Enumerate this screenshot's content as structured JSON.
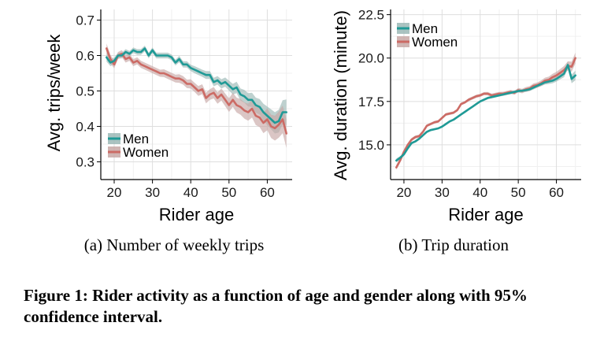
{
  "caption": "Figure 1: Rider activity as a function of age and gender along with 95% confidence interval.",
  "chart_data": [
    {
      "type": "line",
      "subcaption": "(a) Number of weekly trips",
      "xlabel": "Rider age",
      "ylabel": "Avg. trips/week",
      "xlim": [
        16.5,
        66.5
      ],
      "ylim": [
        0.25,
        0.73
      ],
      "xticks": [
        20,
        30,
        40,
        50,
        60
      ],
      "yticks": [
        0.3,
        0.4,
        0.5,
        0.6,
        0.7
      ],
      "ytick_labels": [
        "0.3",
        "0.4",
        "0.5",
        "0.6",
        "0.7"
      ],
      "grid": true,
      "legend_position": "bottom-left",
      "x": [
        18,
        19,
        20,
        21,
        22,
        23,
        24,
        25,
        26,
        27,
        28,
        29,
        30,
        31,
        32,
        33,
        34,
        35,
        36,
        37,
        38,
        39,
        40,
        41,
        42,
        43,
        44,
        45,
        46,
        47,
        48,
        49,
        50,
        51,
        52,
        53,
        54,
        55,
        56,
        57,
        58,
        59,
        60,
        61,
        62,
        63,
        64,
        65
      ],
      "series": [
        {
          "name": "Men",
          "color": "#1f9a96",
          "band_color": "#9bb8b6",
          "values": [
            0.595,
            0.58,
            0.585,
            0.6,
            0.6,
            0.61,
            0.605,
            0.615,
            0.61,
            0.61,
            0.62,
            0.6,
            0.615,
            0.6,
            0.6,
            0.6,
            0.6,
            0.595,
            0.58,
            0.59,
            0.575,
            0.575,
            0.565,
            0.56,
            0.555,
            0.55,
            0.545,
            0.545,
            0.525,
            0.53,
            0.52,
            0.525,
            0.515,
            0.505,
            0.51,
            0.49,
            0.485,
            0.475,
            0.475,
            0.46,
            0.455,
            0.44,
            0.43,
            0.42,
            0.41,
            0.415,
            0.44,
            0.44
          ],
          "ci_halfwidth": [
            0.012,
            0.01,
            0.009,
            0.008,
            0.008,
            0.008,
            0.008,
            0.008,
            0.008,
            0.008,
            0.008,
            0.008,
            0.008,
            0.008,
            0.008,
            0.008,
            0.008,
            0.008,
            0.008,
            0.009,
            0.009,
            0.009,
            0.009,
            0.01,
            0.01,
            0.01,
            0.011,
            0.011,
            0.012,
            0.012,
            0.013,
            0.013,
            0.014,
            0.015,
            0.016,
            0.017,
            0.018,
            0.019,
            0.02,
            0.021,
            0.022,
            0.024,
            0.026,
            0.028,
            0.03,
            0.032,
            0.034,
            0.036
          ]
        },
        {
          "name": "Women",
          "color": "#cc6b65",
          "band_color": "#c8a8a6",
          "values": [
            0.62,
            0.59,
            0.575,
            0.6,
            0.605,
            0.59,
            0.595,
            0.58,
            0.585,
            0.575,
            0.57,
            0.565,
            0.56,
            0.555,
            0.55,
            0.55,
            0.545,
            0.54,
            0.535,
            0.535,
            0.53,
            0.52,
            0.52,
            0.51,
            0.5,
            0.505,
            0.48,
            0.49,
            0.495,
            0.48,
            0.49,
            0.475,
            0.46,
            0.475,
            0.46,
            0.455,
            0.445,
            0.44,
            0.45,
            0.43,
            0.425,
            0.41,
            0.42,
            0.4,
            0.395,
            0.405,
            0.42,
            0.38
          ],
          "ci_halfwidth": [
            0.014,
            0.012,
            0.011,
            0.01,
            0.01,
            0.01,
            0.01,
            0.01,
            0.01,
            0.01,
            0.01,
            0.01,
            0.01,
            0.01,
            0.01,
            0.011,
            0.011,
            0.011,
            0.011,
            0.012,
            0.012,
            0.012,
            0.013,
            0.013,
            0.014,
            0.014,
            0.015,
            0.015,
            0.016,
            0.016,
            0.017,
            0.018,
            0.019,
            0.02,
            0.021,
            0.022,
            0.023,
            0.024,
            0.025,
            0.026,
            0.027,
            0.029,
            0.031,
            0.033,
            0.035,
            0.037,
            0.039,
            0.041
          ]
        }
      ]
    },
    {
      "type": "line",
      "subcaption": "(b) Trip duration",
      "xlabel": "Rider age",
      "ylabel": "Avg. duration (minute)",
      "xlim": [
        16.5,
        66.5
      ],
      "ylim": [
        13.0,
        22.8
      ],
      "xticks": [
        20,
        30,
        40,
        50,
        60
      ],
      "yticks": [
        15.0,
        17.5,
        20.0,
        22.5
      ],
      "ytick_labels": [
        "15.0",
        "17.5",
        "20.0",
        "22.5"
      ],
      "grid": true,
      "legend_position": "top-left",
      "x": [
        18,
        19,
        20,
        21,
        22,
        23,
        24,
        25,
        26,
        27,
        28,
        29,
        30,
        31,
        32,
        33,
        34,
        35,
        36,
        37,
        38,
        39,
        40,
        41,
        42,
        43,
        44,
        45,
        46,
        47,
        48,
        49,
        50,
        51,
        52,
        53,
        54,
        55,
        56,
        57,
        58,
        59,
        60,
        61,
        62,
        63,
        64,
        65
      ],
      "series": [
        {
          "name": "Men",
          "color": "#1f9a96",
          "band_color": "#9bb8b6",
          "values": [
            14.1,
            14.25,
            14.45,
            14.8,
            15.1,
            15.2,
            15.35,
            15.55,
            15.75,
            15.85,
            15.9,
            15.95,
            16.05,
            16.2,
            16.35,
            16.45,
            16.6,
            16.75,
            16.9,
            17.05,
            17.2,
            17.35,
            17.5,
            17.6,
            17.7,
            17.75,
            17.8,
            17.85,
            17.9,
            17.95,
            18.0,
            18.05,
            18.1,
            18.12,
            18.15,
            18.2,
            18.3,
            18.4,
            18.5,
            18.6,
            18.65,
            18.7,
            18.8,
            18.95,
            19.1,
            19.6,
            18.8,
            19.0
          ],
          "ci_halfwidth": [
            0.12,
            0.1,
            0.09,
            0.08,
            0.07,
            0.07,
            0.07,
            0.06,
            0.06,
            0.06,
            0.06,
            0.06,
            0.06,
            0.06,
            0.06,
            0.06,
            0.06,
            0.06,
            0.06,
            0.06,
            0.06,
            0.06,
            0.06,
            0.07,
            0.07,
            0.07,
            0.07,
            0.07,
            0.08,
            0.08,
            0.08,
            0.08,
            0.09,
            0.09,
            0.1,
            0.1,
            0.11,
            0.11,
            0.12,
            0.13,
            0.14,
            0.15,
            0.16,
            0.18,
            0.2,
            0.22,
            0.25,
            0.28
          ]
        },
        {
          "name": "Women",
          "color": "#cc6b65",
          "band_color": "#c8a8a6",
          "values": [
            13.7,
            14.1,
            14.6,
            15.0,
            15.3,
            15.45,
            15.5,
            15.75,
            16.1,
            16.2,
            16.3,
            16.35,
            16.55,
            16.75,
            16.8,
            16.85,
            17.0,
            17.35,
            17.45,
            17.6,
            17.7,
            17.8,
            17.85,
            17.95,
            17.95,
            17.85,
            17.9,
            17.95,
            17.95,
            18.0,
            18.05,
            18.0,
            18.15,
            18.1,
            18.2,
            18.25,
            18.4,
            18.45,
            18.55,
            18.7,
            18.75,
            18.9,
            19.0,
            19.15,
            19.3,
            19.55,
            19.5,
            20.0
          ],
          "ci_halfwidth": [
            0.14,
            0.12,
            0.11,
            0.1,
            0.09,
            0.09,
            0.09,
            0.08,
            0.08,
            0.08,
            0.08,
            0.08,
            0.08,
            0.08,
            0.08,
            0.08,
            0.08,
            0.08,
            0.08,
            0.09,
            0.09,
            0.09,
            0.09,
            0.09,
            0.1,
            0.1,
            0.1,
            0.1,
            0.11,
            0.11,
            0.11,
            0.12,
            0.12,
            0.13,
            0.13,
            0.14,
            0.14,
            0.15,
            0.16,
            0.17,
            0.18,
            0.19,
            0.2,
            0.22,
            0.24,
            0.26,
            0.29,
            0.32
          ]
        }
      ]
    }
  ]
}
